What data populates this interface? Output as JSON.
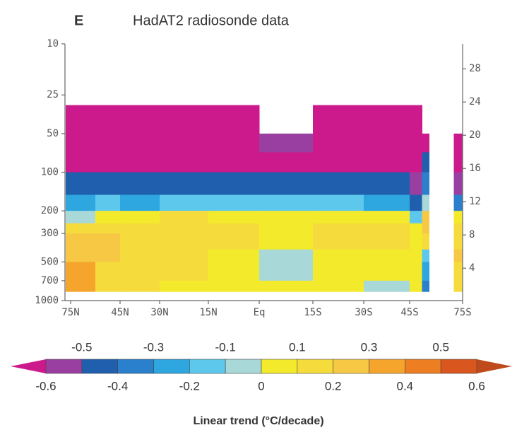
{
  "chart_data": {
    "type": "contour",
    "panel_label": "E",
    "title": "HadAT2 radiosonde data",
    "x_edges": [
      78,
      60,
      45,
      30,
      15,
      0,
      -15,
      -30,
      -45,
      -52,
      -56,
      -70,
      -75
    ],
    "p_edges": [
      30,
      50,
      70,
      100,
      150,
      200,
      250,
      300,
      400,
      500,
      700,
      850
    ],
    "z": [
      [
        -0.65,
        -0.65,
        -0.65,
        -0.65,
        -0.65,
        null,
        -0.65,
        -0.65,
        -0.65,
        null,
        null,
        null
      ],
      [
        -0.65,
        -0.65,
        -0.65,
        -0.65,
        -0.65,
        -0.55,
        -0.65,
        -0.65,
        -0.65,
        -0.65,
        null,
        -0.65
      ],
      [
        -0.65,
        -0.65,
        -0.65,
        -0.65,
        -0.65,
        -0.65,
        -0.65,
        -0.65,
        -0.65,
        -0.45,
        null,
        -0.65
      ],
      [
        -0.45,
        -0.45,
        -0.45,
        -0.45,
        -0.45,
        -0.45,
        -0.45,
        -0.45,
        -0.55,
        -0.35,
        null,
        -0.55
      ],
      [
        -0.25,
        -0.15,
        -0.25,
        -0.15,
        -0.15,
        -0.15,
        -0.15,
        -0.25,
        -0.45,
        -0.05,
        null,
        -0.35
      ],
      [
        -0.05,
        0.05,
        0.05,
        0.15,
        0.05,
        0.05,
        0.05,
        0.05,
        -0.15,
        0.25,
        null,
        0.05
      ],
      [
        0.15,
        0.15,
        0.15,
        0.15,
        0.15,
        0.05,
        0.15,
        0.15,
        0.05,
        0.25,
        null,
        0.15
      ],
      [
        0.25,
        0.25,
        0.15,
        0.15,
        0.15,
        0.05,
        0.15,
        0.15,
        0.05,
        0.15,
        null,
        0.15
      ],
      [
        0.25,
        0.25,
        0.15,
        0.15,
        0.05,
        -0.05,
        0.05,
        0.05,
        0.05,
        -0.15,
        null,
        0.25
      ],
      [
        0.35,
        0.15,
        0.15,
        0.15,
        0.05,
        -0.05,
        0.05,
        0.05,
        0.05,
        -0.25,
        null,
        0.15
      ],
      [
        0.35,
        0.15,
        0.15,
        0.05,
        0.05,
        0.05,
        0.05,
        -0.05,
        0.05,
        -0.35,
        null,
        0.15
      ]
    ],
    "xticks": [
      {
        "value": 75,
        "label": "75N"
      },
      {
        "value": 45,
        "label": "45N"
      },
      {
        "value": 30,
        "label": "30N"
      },
      {
        "value": 15,
        "label": "15N"
      },
      {
        "value": 0,
        "label": "Eq"
      },
      {
        "value": -15,
        "label": "15S"
      },
      {
        "value": -30,
        "label": "30S"
      },
      {
        "value": -45,
        "label": "45S"
      },
      {
        "value": -75,
        "label": "75S"
      }
    ],
    "ylim": [
      10,
      1000
    ],
    "yticks": [
      10,
      25,
      50,
      100,
      200,
      300,
      500,
      700,
      1000
    ],
    "y_log": true,
    "y2lim": [
      0.1,
      31
    ],
    "y2ticks": [
      4,
      8,
      12,
      16,
      20,
      24,
      28
    ],
    "colorbar": {
      "levels": [
        -0.6,
        -0.5,
        -0.4,
        -0.3,
        -0.2,
        -0.1,
        0,
        0.1,
        0.2,
        0.3,
        0.4,
        0.5,
        0.6
      ],
      "colors": [
        "#cc1a8c",
        "#9a3fa2",
        "#1f5fae",
        "#2a80cc",
        "#2ea6df",
        "#5ec8ec",
        "#a9d8d8",
        "#f4ea2c",
        "#f5dc3c",
        "#f6c844",
        "#f5a52c",
        "#ee7e22",
        "#d9571e",
        "#bf4a1c"
      ],
      "ticks_bottom": [
        -0.6,
        -0.4,
        -0.2,
        0,
        0.2,
        0.4,
        0.6
      ],
      "ticks_top": [
        -0.5,
        -0.3,
        -0.1,
        0.1,
        0.3,
        0.5
      ],
      "label": "Linear trend (°C/decade)"
    }
  }
}
